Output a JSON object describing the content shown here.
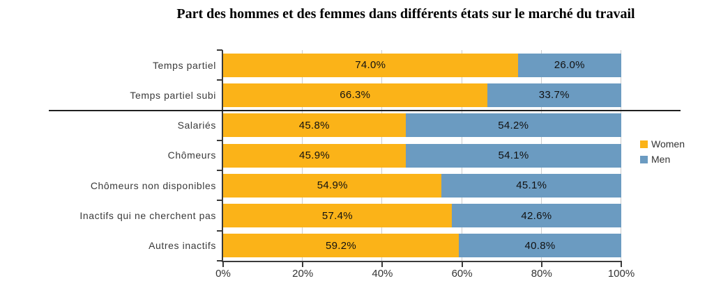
{
  "chart_data": {
    "type": "bar",
    "orientation": "horizontal",
    "stacked": true,
    "title": "Part des hommes et des femmes dans différents états sur le marché du travail",
    "categories": [
      "Temps partiel",
      "Temps partiel subi",
      "Salariés",
      "Chômeurs",
      "Chômeurs non disponibles",
      "Inactifs qui ne cherchent pas",
      "Autres inactifs"
    ],
    "series": [
      {
        "name": "Women",
        "color": "#FBB318",
        "values": [
          74.0,
          66.3,
          45.8,
          45.9,
          54.9,
          57.4,
          59.2
        ]
      },
      {
        "name": "Men",
        "color": "#6B9BC1",
        "values": [
          26.0,
          33.7,
          54.2,
          54.1,
          45.1,
          42.6,
          40.8
        ]
      }
    ],
    "value_label_suffix": "%",
    "x_ticks": [
      "0%",
      "20%",
      "40%",
      "60%",
      "80%",
      "100%"
    ],
    "xlim": [
      0,
      100
    ],
    "grid": "vertical",
    "legend_position": "right",
    "separator_after_category_index": 1
  },
  "legend": {
    "items": [
      {
        "label": "Women",
        "color": "#FBB318"
      },
      {
        "label": "Men",
        "color": "#6B9BC1"
      }
    ]
  },
  "colors": {
    "grid": "#CCCCCC",
    "axis": "#3A3A3A",
    "separator": "#1F1F1F",
    "category_text": "#3A3A3A",
    "value_text": "#111111",
    "title_text": "#000000"
  }
}
